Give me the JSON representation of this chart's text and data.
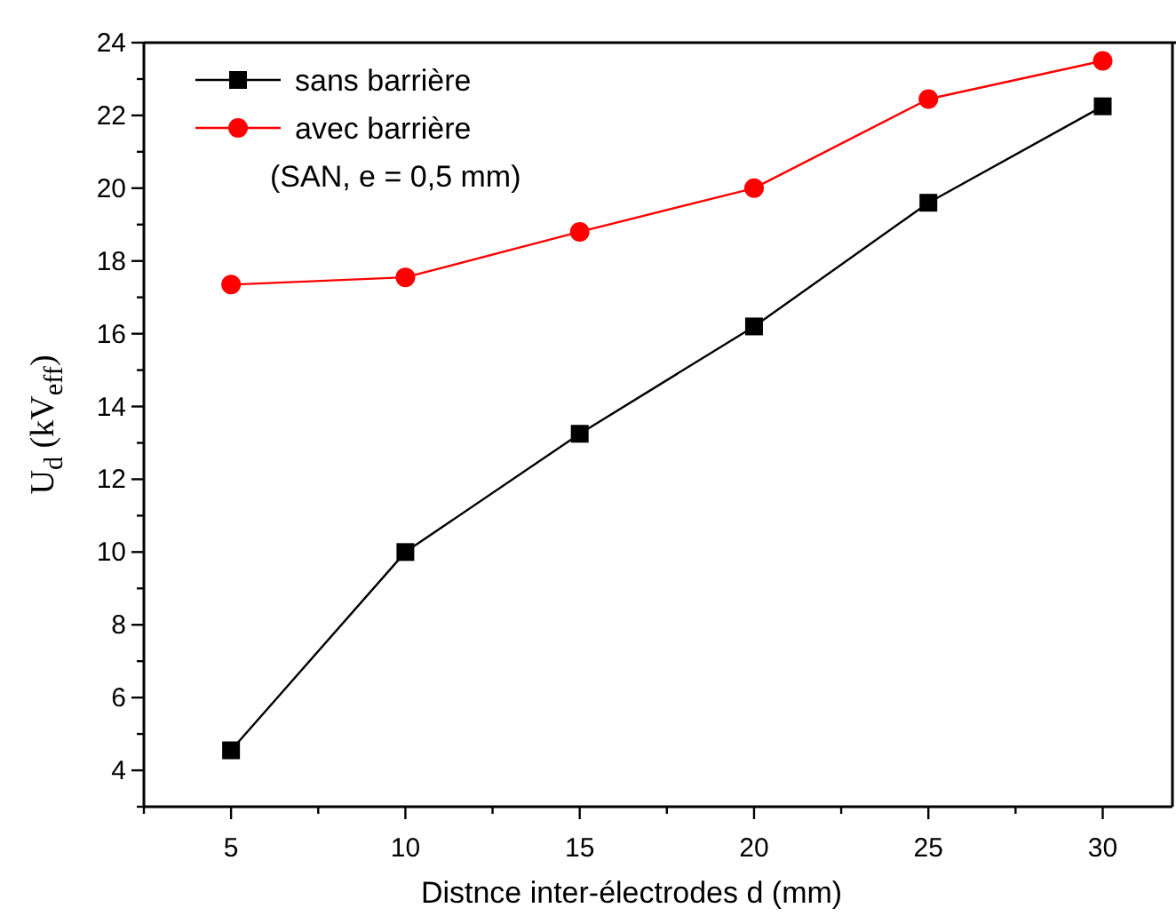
{
  "chart_data": {
    "type": "line",
    "xlabel": "Distnce inter-électrodes d (mm)",
    "ylabel": "U$_{d}$ (kV$_{eff}$)",
    "x": [
      5,
      10,
      15,
      20,
      25,
      30
    ],
    "series": [
      {
        "name": "sans barrière",
        "color": "#000000",
        "marker": "square",
        "values": [
          4.55,
          10,
          13.25,
          16.2,
          19.6,
          22.25
        ]
      },
      {
        "name": "avec barrière\n(SAN, e = 0,5 mm)",
        "color": "#ff0000",
        "marker": "circle",
        "values": [
          17.35,
          17.55,
          18.8,
          20,
          22.45,
          23.5
        ]
      }
    ],
    "xlim": [
      2.5,
      32
    ],
    "ylim": [
      3,
      24
    ],
    "xticks": [
      {
        "value": 2.5,
        "label": null
      },
      5,
      {
        "value": 7.5,
        "label": null
      },
      10,
      {
        "value": 12.5,
        "label": null
      },
      15,
      {
        "value": 17.5,
        "label": null
      },
      20,
      {
        "value": 22.5,
        "label": null
      },
      25,
      {
        "value": 27.5,
        "label": null
      },
      30
    ],
    "yticks": [
      {
        "value": 3,
        "label": null
      },
      4,
      {
        "value": 5,
        "label": null
      },
      6,
      {
        "value": 7,
        "label": null
      },
      8,
      {
        "value": 9,
        "label": null
      },
      10,
      {
        "value": 11,
        "label": null
      },
      12,
      {
        "value": 13,
        "label": null
      },
      14,
      {
        "value": 15,
        "label": null
      },
      16,
      {
        "value": 17,
        "label": null
      },
      18,
      {
        "value": 19,
        "label": null
      },
      20,
      {
        "value": 21,
        "label": null
      },
      22,
      {
        "value": 23,
        "label": null
      },
      24
    ],
    "grid": false,
    "legend": "top left",
    "line_style": "solid"
  }
}
